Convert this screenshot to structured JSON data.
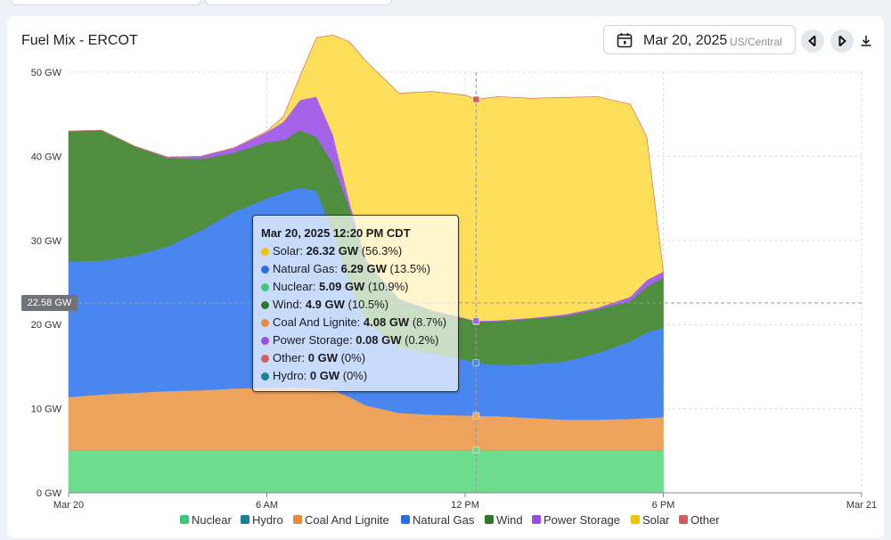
{
  "header": {
    "title": "Fuel Mix - ERCOT",
    "date": "Mar 20, 2025",
    "timezone": "US/Central"
  },
  "icons": {
    "calendar": "calendar-icon",
    "prev": "chevron-left-icon",
    "next": "chevron-right-icon",
    "download": "download-icon"
  },
  "crosshair": {
    "y_value_label": "22.58 GW",
    "y_value": 22.58,
    "x_hour": 12.333
  },
  "tooltip": {
    "title": "Mar 20, 2025 12:20 PM CDT",
    "rows": [
      {
        "name": "Solar",
        "value": "26.32 GW",
        "pct": "(56.3%)",
        "color": "#f2c200"
      },
      {
        "name": "Natural Gas",
        "value": "6.29 GW",
        "pct": "(13.5%)",
        "color": "#2b6fe0"
      },
      {
        "name": "Nuclear",
        "value": "5.09 GW",
        "pct": "(10.9%)",
        "color": "#40c979"
      },
      {
        "name": "Wind",
        "value": "4.9 GW",
        "pct": "(10.5%)",
        "color": "#2c7a28"
      },
      {
        "name": "Coal And Lignite",
        "value": "4.08 GW",
        "pct": "(8.7%)",
        "color": "#e88a3c"
      },
      {
        "name": "Power Storage",
        "value": "0.08 GW",
        "pct": "(0.2%)",
        "color": "#9b4de0"
      },
      {
        "name": "Other",
        "value": "0 GW",
        "pct": "(0%)",
        "color": "#d35c5c"
      },
      {
        "name": "Hydro",
        "value": "0 GW",
        "pct": "(0%)",
        "color": "#13849a"
      }
    ]
  },
  "chart_data": {
    "type": "area",
    "stacked": true,
    "x_unit": "hour of Mar 20, 2025",
    "x": [
      0,
      1,
      2,
      3,
      4,
      5,
      6,
      6.5,
      7,
      7.5,
      8,
      8.5,
      9,
      10,
      11,
      12,
      12.333,
      13,
      14,
      15,
      16,
      17,
      17.5,
      18
    ],
    "x_ticks": [
      {
        "hour": 0,
        "label": "Mar 20"
      },
      {
        "hour": 6,
        "label": "6 AM"
      },
      {
        "hour": 12,
        "label": "12 PM"
      },
      {
        "hour": 18,
        "label": "6 PM"
      },
      {
        "hour": 24,
        "label": "Mar 21"
      }
    ],
    "xlim": [
      0,
      24
    ],
    "ylim": [
      0,
      50
    ],
    "y_ticks": [
      {
        "value": 0,
        "label": "0 GW"
      },
      {
        "value": 10,
        "label": "10 GW"
      },
      {
        "value": 20,
        "label": "20 GW"
      },
      {
        "value": 30,
        "label": "30 GW"
      },
      {
        "value": 40,
        "label": "40 GW"
      },
      {
        "value": 50,
        "label": "50 GW"
      }
    ],
    "grid": true,
    "legend_position": "bottom",
    "series": [
      {
        "name": "Nuclear",
        "color": "#6ddc8c",
        "values": [
          5.1,
          5.1,
          5.1,
          5.1,
          5.1,
          5.1,
          5.1,
          5.1,
          5.1,
          5.1,
          5.1,
          5.1,
          5.1,
          5.1,
          5.1,
          5.1,
          5.09,
          5.1,
          5.1,
          5.1,
          5.1,
          5.1,
          5.1,
          5.1
        ]
      },
      {
        "name": "Hydro",
        "color": "#13849a",
        "values": [
          0,
          0,
          0,
          0,
          0,
          0,
          0,
          0,
          0,
          0,
          0,
          0,
          0,
          0,
          0,
          0,
          0,
          0,
          0,
          0,
          0,
          0,
          0,
          0
        ]
      },
      {
        "name": "Coal And Lignite",
        "color": "#eea35c",
        "values": [
          6.3,
          6.6,
          6.8,
          7.0,
          7.1,
          7.3,
          7.4,
          7.4,
          7.4,
          7.3,
          7.1,
          6.3,
          5.3,
          4.4,
          4.2,
          4.1,
          4.08,
          4.0,
          3.8,
          3.6,
          3.6,
          3.7,
          3.8,
          3.9
        ]
      },
      {
        "name": "Natural Gas",
        "color": "#4a86f0",
        "values": [
          16.1,
          15.9,
          16.3,
          17.2,
          19.0,
          21.0,
          22.5,
          23.2,
          23.8,
          23.5,
          18.8,
          13.6,
          10.0,
          7.8,
          7.3,
          6.6,
          6.29,
          6.1,
          6.4,
          6.9,
          7.9,
          9.2,
          10.2,
          10.6
        ]
      },
      {
        "name": "Wind",
        "color": "#4f8e3e",
        "values": [
          15.5,
          15.5,
          13.0,
          10.5,
          8.5,
          7.0,
          6.7,
          6.2,
          6.8,
          6.4,
          8.2,
          8.8,
          7.1,
          5.7,
          5.0,
          4.9,
          4.9,
          5.2,
          5.4,
          5.4,
          5.2,
          4.8,
          5.4,
          6.0
        ]
      },
      {
        "name": "Power Storage",
        "color": "#a463e8",
        "values": [
          0.0,
          0.0,
          0.0,
          0.1,
          0.3,
          0.6,
          1.2,
          2.2,
          3.6,
          4.8,
          3.4,
          0.8,
          0.2,
          0.1,
          0.1,
          0.08,
          0.08,
          0.1,
          0.1,
          0.2,
          0.2,
          0.5,
          0.8,
          0.7
        ]
      },
      {
        "name": "Solar",
        "color": "#fddf5a",
        "values": [
          0,
          0,
          0,
          0,
          0,
          0,
          0.1,
          0.6,
          2.8,
          7.0,
          11.8,
          19.0,
          23.6,
          24.4,
          26.0,
          26.5,
          26.32,
          26.6,
          26.1,
          25.8,
          25.1,
          22.9,
          17.0,
          0
        ]
      },
      {
        "name": "Other",
        "color": "#d35c5c",
        "values": [
          0,
          0,
          0,
          0,
          0,
          0,
          0,
          0,
          0,
          0,
          0,
          0,
          0,
          0,
          0,
          0,
          0,
          0,
          0,
          0,
          0,
          0,
          0,
          0
        ]
      }
    ],
    "legend": [
      {
        "name": "Nuclear",
        "color": "#40c979"
      },
      {
        "name": "Hydro",
        "color": "#13849a"
      },
      {
        "name": "Coal And Lignite",
        "color": "#e88a3c"
      },
      {
        "name": "Natural Gas",
        "color": "#2b6fe0"
      },
      {
        "name": "Wind",
        "color": "#2c7a28"
      },
      {
        "name": "Power Storage",
        "color": "#9b4de0"
      },
      {
        "name": "Solar",
        "color": "#f2c200"
      },
      {
        "name": "Other",
        "color": "#d35c5c"
      }
    ]
  }
}
